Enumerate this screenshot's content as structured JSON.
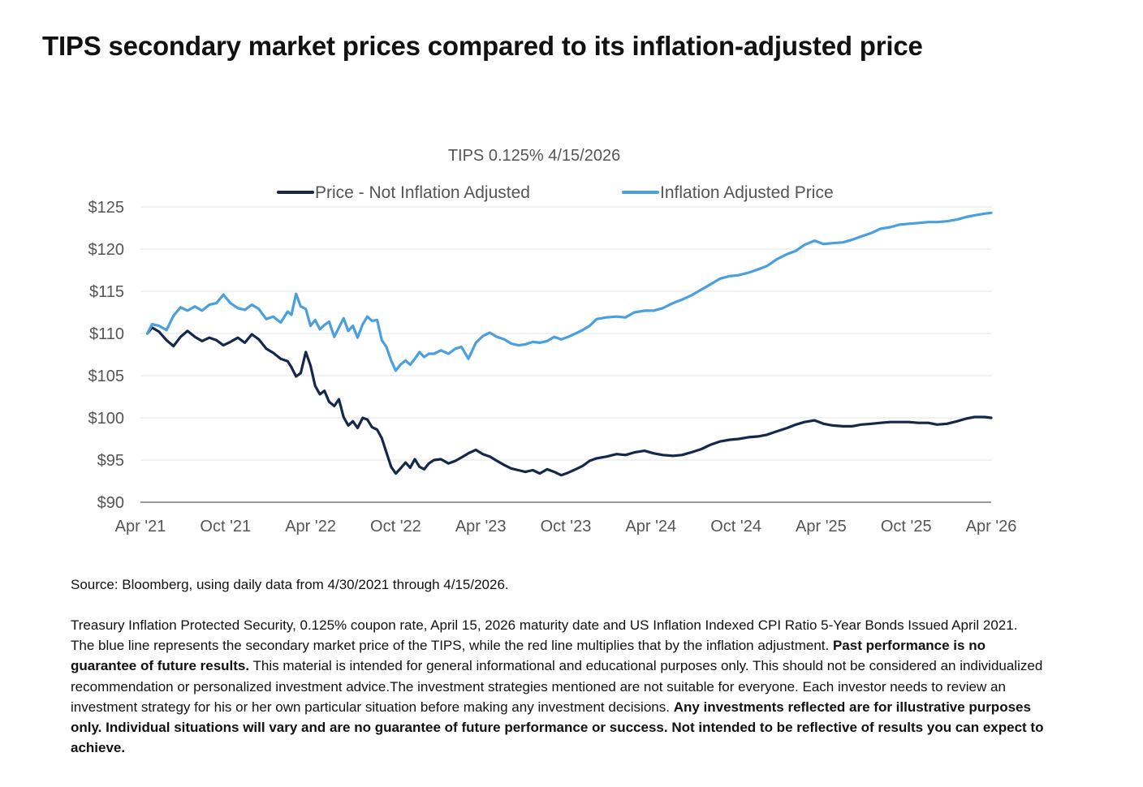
{
  "page": {
    "title": "TIPS secondary market prices compared to its inflation-adjusted price",
    "source": "Source: Bloomberg, using daily data from 4/30/2021 through 4/15/2026.",
    "disclaimer": [
      {
        "text": "Treasury Inflation Protected Security, 0.125% coupon rate, April 15, 2026 maturity date and US Inflation Indexed CPI Ratio 5-Year Bonds Issued April 2021. The blue line represents the secondary market price of the TIPS, while the red line multiplies that by the inflation adjustment. ",
        "bold": false
      },
      {
        "text": "Past performance is no guarantee of future results.",
        "bold": true
      },
      {
        "text": " This material is intended for general informational and educational purposes only. This should not be considered an individualized recommendation or personalized investment advice.The investment strategies mentioned are not suitable for everyone. Each investor needs to review an investment strategy for his or her own particular situation before making any investment decisions. ",
        "bold": false
      },
      {
        "text": "Any investments reflected are for illustrative purposes only. Individual situations will vary and are no guarantee of future performance or success. Not intended to be reflective of results you can expect to achieve.",
        "bold": true
      }
    ]
  },
  "chart_data": {
    "type": "line",
    "title": "TIPS 0.125% 4/15/2026",
    "xlabel": "",
    "ylabel": "",
    "x_ticks": [
      "Apr '21",
      "Oct '21",
      "Apr '22",
      "Oct '22",
      "Apr '23",
      "Oct '23",
      "Apr '24",
      "Oct '24",
      "Apr '25",
      "Oct '25",
      "Apr '26"
    ],
    "y_ticks": [
      "$90",
      "$95",
      "$100",
      "$105",
      "$110",
      "$115",
      "$120",
      "$125"
    ],
    "ylim": [
      90,
      125
    ],
    "xlim": [
      "2021-04-15",
      "2026-04-15"
    ],
    "grid": "horizontal",
    "legend_position": "top",
    "series": [
      {
        "name": "Price - Not Inflation Adjusted",
        "color": "#14284b",
        "x": [
          "2021-04-30",
          "2021-05-10",
          "2021-05-25",
          "2021-06-10",
          "2021-06-25",
          "2021-07-10",
          "2021-07-25",
          "2021-08-10",
          "2021-08-25",
          "2021-09-10",
          "2021-09-25",
          "2021-10-10",
          "2021-10-25",
          "2021-11-10",
          "2021-11-25",
          "2021-12-10",
          "2021-12-25",
          "2022-01-10",
          "2022-01-25",
          "2022-02-10",
          "2022-02-25",
          "2022-03-05",
          "2022-03-15",
          "2022-03-25",
          "2022-04-05",
          "2022-04-15",
          "2022-04-25",
          "2022-05-05",
          "2022-05-15",
          "2022-05-25",
          "2022-06-05",
          "2022-06-15",
          "2022-06-25",
          "2022-07-05",
          "2022-07-15",
          "2022-07-25",
          "2022-08-05",
          "2022-08-15",
          "2022-08-25",
          "2022-09-05",
          "2022-09-15",
          "2022-09-25",
          "2022-10-05",
          "2022-10-15",
          "2022-10-25",
          "2022-11-05",
          "2022-11-15",
          "2022-11-25",
          "2022-12-05",
          "2022-12-15",
          "2022-12-25",
          "2023-01-05",
          "2023-01-20",
          "2023-02-05",
          "2023-02-20",
          "2023-03-05",
          "2023-03-20",
          "2023-04-05",
          "2023-04-20",
          "2023-05-05",
          "2023-05-20",
          "2023-06-05",
          "2023-06-20",
          "2023-07-05",
          "2023-07-20",
          "2023-08-05",
          "2023-08-20",
          "2023-09-05",
          "2023-09-20",
          "2023-10-05",
          "2023-10-20",
          "2023-11-05",
          "2023-11-20",
          "2023-12-05",
          "2023-12-20",
          "2024-01-10",
          "2024-02-01",
          "2024-02-20",
          "2024-03-10",
          "2024-04-01",
          "2024-04-20",
          "2024-05-10",
          "2024-06-01",
          "2024-06-20",
          "2024-07-10",
          "2024-08-01",
          "2024-08-20",
          "2024-09-10",
          "2024-10-01",
          "2024-10-20",
          "2024-11-10",
          "2024-12-01",
          "2024-12-20",
          "2025-01-10",
          "2025-02-01",
          "2025-02-20",
          "2025-03-10",
          "2025-04-01",
          "2025-04-20",
          "2025-05-10",
          "2025-06-01",
          "2025-06-20",
          "2025-07-10",
          "2025-08-01",
          "2025-08-20",
          "2025-09-10",
          "2025-10-01",
          "2025-10-20",
          "2025-11-10",
          "2025-12-01",
          "2025-12-20",
          "2026-01-10",
          "2026-02-01",
          "2026-02-20",
          "2026-03-10",
          "2026-04-01",
          "2026-04-15"
        ],
        "values": [
          110.0,
          110.7,
          110.2,
          109.2,
          108.5,
          109.6,
          110.3,
          109.6,
          109.1,
          109.5,
          109.2,
          108.6,
          109.0,
          109.5,
          108.9,
          109.9,
          109.3,
          108.2,
          107.7,
          107.0,
          106.7,
          106.0,
          104.9,
          105.3,
          107.8,
          106.2,
          103.8,
          102.8,
          103.2,
          101.9,
          101.4,
          102.2,
          100.1,
          99.1,
          99.6,
          98.8,
          100.0,
          99.8,
          98.9,
          98.6,
          97.6,
          95.9,
          94.2,
          93.4,
          94.0,
          94.7,
          94.1,
          95.1,
          94.2,
          93.9,
          94.6,
          95.0,
          95.1,
          94.6,
          94.9,
          95.3,
          95.8,
          96.2,
          95.7,
          95.4,
          94.9,
          94.4,
          94.0,
          93.8,
          93.6,
          93.8,
          93.4,
          93.9,
          93.6,
          93.2,
          93.5,
          93.9,
          94.3,
          94.9,
          95.2,
          95.4,
          95.7,
          95.6,
          95.9,
          96.1,
          95.8,
          95.6,
          95.5,
          95.6,
          95.9,
          96.3,
          96.8,
          97.2,
          97.4,
          97.5,
          97.7,
          97.8,
          98.0,
          98.4,
          98.8,
          99.2,
          99.5,
          99.7,
          99.3,
          99.1,
          99.0,
          99.0,
          99.2,
          99.3,
          99.4,
          99.5,
          99.5,
          99.5,
          99.4,
          99.4,
          99.2,
          99.3,
          99.6,
          99.9,
          100.1,
          100.1,
          100.0
        ]
      },
      {
        "name": "Inflation Adjusted Price",
        "color": "#4a9fdf",
        "x": [
          "2021-04-30",
          "2021-05-10",
          "2021-05-25",
          "2021-06-10",
          "2021-06-25",
          "2021-07-10",
          "2021-07-25",
          "2021-08-10",
          "2021-08-25",
          "2021-09-10",
          "2021-09-25",
          "2021-10-10",
          "2021-10-25",
          "2021-11-10",
          "2021-11-25",
          "2021-12-10",
          "2021-12-25",
          "2022-01-10",
          "2022-01-25",
          "2022-02-10",
          "2022-02-25",
          "2022-03-05",
          "2022-03-15",
          "2022-03-25",
          "2022-04-05",
          "2022-04-15",
          "2022-04-25",
          "2022-05-05",
          "2022-05-15",
          "2022-05-25",
          "2022-06-05",
          "2022-06-15",
          "2022-06-25",
          "2022-07-05",
          "2022-07-15",
          "2022-07-25",
          "2022-08-05",
          "2022-08-15",
          "2022-08-25",
          "2022-09-05",
          "2022-09-15",
          "2022-09-25",
          "2022-10-05",
          "2022-10-15",
          "2022-10-25",
          "2022-11-05",
          "2022-11-15",
          "2022-11-25",
          "2022-12-05",
          "2022-12-15",
          "2022-12-25",
          "2023-01-05",
          "2023-01-20",
          "2023-02-05",
          "2023-02-20",
          "2023-03-05",
          "2023-03-20",
          "2023-04-05",
          "2023-04-20",
          "2023-05-05",
          "2023-05-20",
          "2023-06-05",
          "2023-06-20",
          "2023-07-05",
          "2023-07-20",
          "2023-08-05",
          "2023-08-20",
          "2023-09-05",
          "2023-09-20",
          "2023-10-05",
          "2023-10-20",
          "2023-11-05",
          "2023-11-20",
          "2023-12-05",
          "2023-12-20",
          "2024-01-10",
          "2024-02-01",
          "2024-02-20",
          "2024-03-10",
          "2024-04-01",
          "2024-04-20",
          "2024-05-10",
          "2024-06-01",
          "2024-06-20",
          "2024-07-10",
          "2024-08-01",
          "2024-08-20",
          "2024-09-10",
          "2024-10-01",
          "2024-10-20",
          "2024-11-10",
          "2024-12-01",
          "2024-12-20",
          "2025-01-10",
          "2025-02-01",
          "2025-02-20",
          "2025-03-10",
          "2025-04-01",
          "2025-04-20",
          "2025-05-10",
          "2025-06-01",
          "2025-06-20",
          "2025-07-10",
          "2025-08-01",
          "2025-08-20",
          "2025-09-10",
          "2025-10-01",
          "2025-10-20",
          "2025-11-10",
          "2025-12-01",
          "2025-12-20",
          "2026-01-10",
          "2026-02-01",
          "2026-02-20",
          "2026-03-10",
          "2026-04-01",
          "2026-04-15"
        ],
        "values": [
          110.0,
          111.1,
          110.9,
          110.4,
          112.1,
          113.1,
          112.7,
          113.2,
          112.7,
          113.4,
          113.6,
          114.6,
          113.6,
          113.0,
          112.8,
          113.4,
          112.9,
          111.7,
          112.0,
          111.3,
          112.6,
          112.2,
          114.7,
          113.2,
          112.9,
          110.9,
          111.6,
          110.5,
          111.0,
          111.4,
          109.6,
          110.7,
          111.8,
          110.3,
          110.9,
          109.5,
          111.1,
          112.0,
          111.5,
          111.6,
          109.2,
          108.4,
          106.8,
          105.6,
          106.3,
          106.8,
          106.3,
          107.0,
          107.8,
          107.2,
          107.6,
          107.6,
          108.0,
          107.6,
          108.2,
          108.4,
          107.0,
          108.9,
          109.7,
          110.1,
          109.6,
          109.3,
          108.8,
          108.6,
          108.7,
          109.0,
          108.9,
          109.1,
          109.6,
          109.3,
          109.6,
          110.0,
          110.4,
          110.9,
          111.7,
          111.9,
          112.0,
          111.9,
          112.5,
          112.7,
          112.7,
          113.0,
          113.6,
          114.0,
          114.5,
          115.2,
          115.8,
          116.5,
          116.8,
          116.9,
          117.2,
          117.6,
          118.0,
          118.8,
          119.4,
          119.8,
          120.5,
          121.0,
          120.6,
          120.7,
          120.8,
          121.1,
          121.5,
          121.9,
          122.4,
          122.6,
          122.9,
          123.0,
          123.1,
          123.2,
          123.2,
          123.3,
          123.5,
          123.8,
          124.0,
          124.2,
          124.3
        ]
      }
    ]
  }
}
